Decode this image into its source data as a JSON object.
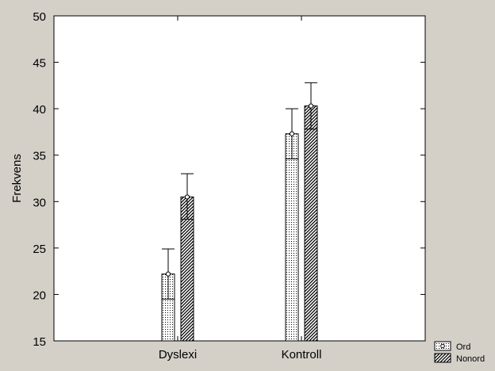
{
  "chart_data": {
    "type": "bar",
    "title": "",
    "xlabel": "",
    "ylabel": "Frekvens",
    "ylim": [
      15,
      50
    ],
    "yticks": [
      15,
      20,
      25,
      30,
      35,
      40,
      45,
      50
    ],
    "categories": [
      "Dyslexi",
      "Kontroll"
    ],
    "grid": false,
    "legend_position": "bottom-right",
    "series": [
      {
        "name": "Ord",
        "pattern": "dotted",
        "values": [
          22.2,
          37.3
        ],
        "error_low": [
          19.5,
          34.6
        ],
        "error_high": [
          24.9,
          40.0
        ]
      },
      {
        "name": "Nonord",
        "pattern": "hatched",
        "values": [
          30.5,
          40.3
        ],
        "error_low": [
          28.1,
          37.8
        ],
        "error_high": [
          33.0,
          42.8
        ]
      }
    ],
    "colors": {
      "background": "#d4d0c8",
      "plot_area": "#ffffff",
      "ink": "#000000"
    }
  }
}
